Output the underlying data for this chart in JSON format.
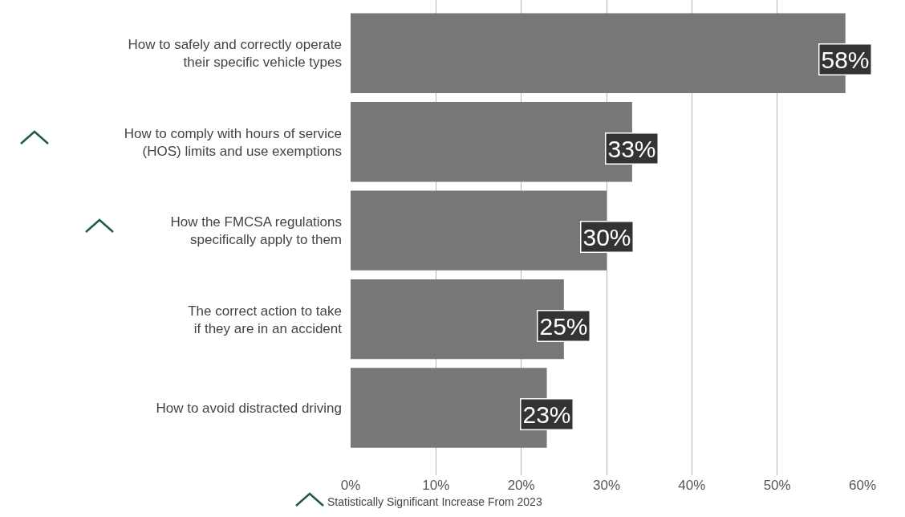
{
  "chart_data": {
    "type": "bar",
    "orientation": "horizontal",
    "categories": [
      "How to safely and correctly operate\ntheir specific vehicle types",
      "How to comply with hours of service\n(HOS) limits and use exemptions",
      "How the FMCSA regulations\nspecifically apply to them",
      "The correct action to take\nif they are in an accident",
      "How to avoid distracted driving"
    ],
    "values": [
      58,
      33,
      30,
      25,
      23
    ],
    "color": "#77777a",
    "xlim": [
      0,
      60
    ],
    "xticks": [
      {
        "value": 0,
        "label": "0%"
      },
      {
        "value": 10,
        "label": "10%"
      },
      {
        "value": 20,
        "label": "20%"
      },
      {
        "value": 30,
        "label": "30%"
      },
      {
        "value": 40,
        "label": "40%"
      },
      {
        "value": 50,
        "label": "50%"
      },
      {
        "value": 60,
        "label": "60%"
      }
    ],
    "value_labels": [
      "58%",
      "33%",
      "30%",
      "25%",
      "23%"
    ],
    "grid": "x",
    "legend": false,
    "annotations": [
      "Statistically Significant Increase From 2023"
    ]
  }
}
